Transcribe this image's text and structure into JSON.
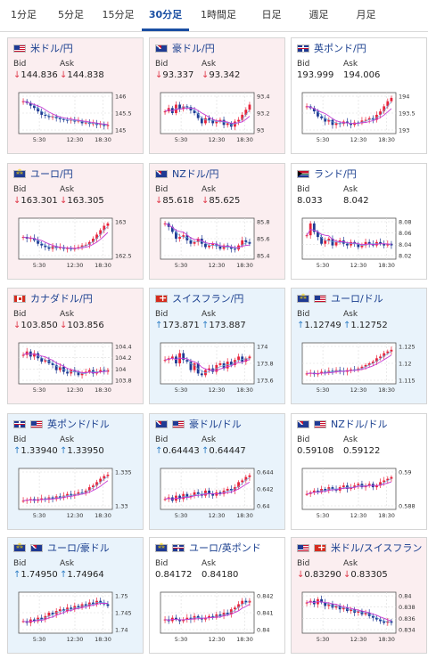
{
  "tabs": [
    "1分足",
    "5分足",
    "15分足",
    "30分足",
    "1時間足",
    "日足",
    "週足",
    "月足"
  ],
  "active_tab": "30分足",
  "labels": {
    "bid": "Bid",
    "ask": "Ask"
  },
  "x_ticks": [
    "5:30",
    "12:30",
    "18:30"
  ],
  "colors": {
    "down_card": "#fbeef0",
    "up_card": "#e9f3fb",
    "candle_up": "#e8233b",
    "candle_down": "#1f3a93",
    "ma": "#c63bd3",
    "ma2": "#6fa8dc"
  },
  "pairs": [
    {
      "name": "米ドル/円",
      "flag": "us",
      "state": "down",
      "bid": "144.836",
      "ask": "144.838",
      "dir": "down",
      "ticks": [
        "146",
        "145.5",
        "145"
      ]
    },
    {
      "name": "豪ドル/円",
      "flag": "au",
      "state": "down",
      "bid": "93.337",
      "ask": "93.342",
      "dir": "down",
      "ticks": [
        "93.4",
        "93.2",
        "93"
      ]
    },
    {
      "name": "英ポンド/円",
      "flag": "gb",
      "state": "neutral",
      "bid": "193.999",
      "ask": "194.006",
      "dir": "none",
      "ticks": [
        "194",
        "193.5",
        "193"
      ]
    },
    {
      "name": "ユーロ/円",
      "flag": "eu",
      "state": "down",
      "bid": "163.301",
      "ask": "163.305",
      "dir": "down",
      "ticks": [
        "163",
        "162.5"
      ]
    },
    {
      "name": "NZドル/円",
      "flag": "nz",
      "state": "down",
      "bid": "85.618",
      "ask": "85.625",
      "dir": "down",
      "ticks": [
        "85.8",
        "85.6",
        "85.4"
      ]
    },
    {
      "name": "ランド/円",
      "flag": "za",
      "state": "neutral",
      "bid": "8.033",
      "ask": "8.042",
      "dir": "none",
      "ticks": [
        "8.08",
        "8.06",
        "8.04",
        "8.02"
      ]
    },
    {
      "name": "カナダドル/円",
      "flag": "ca",
      "state": "down",
      "bid": "103.850",
      "ask": "103.856",
      "dir": "down",
      "ticks": [
        "104.4",
        "104.2",
        "104",
        "103.8"
      ]
    },
    {
      "name": "スイスフラン/円",
      "flag": "ch",
      "state": "up",
      "bid": "173.871",
      "ask": "173.887",
      "dir": "up",
      "ticks": [
        "174",
        "173.8",
        "173.6"
      ]
    },
    {
      "name": "ユーロ/ドル",
      "flag": "eu us",
      "state": "up",
      "bid": "1.12749",
      "ask": "1.12752",
      "dir": "up",
      "ticks": [
        "1.125",
        "1.12",
        "1.115"
      ]
    },
    {
      "name": "英ポンド/ドル",
      "flag": "gb us",
      "state": "up",
      "bid": "1.33940",
      "ask": "1.33950",
      "dir": "up",
      "ticks": [
        "1.335",
        "1.33"
      ]
    },
    {
      "name": "豪ドル/ドル",
      "flag": "au us",
      "state": "up",
      "bid": "0.64443",
      "ask": "0.64447",
      "dir": "up",
      "ticks": [
        "0.644",
        "0.642",
        "0.64"
      ]
    },
    {
      "name": "NZドル/ドル",
      "flag": "nz us",
      "state": "neutral",
      "bid": "0.59108",
      "ask": "0.59122",
      "dir": "none",
      "ticks": [
        "0.59",
        "0.588"
      ]
    },
    {
      "name": "ユーロ/豪ドル",
      "flag": "eu au",
      "state": "up",
      "bid": "1.74950",
      "ask": "1.74964",
      "dir": "up",
      "ticks": [
        "1.75",
        "1.745",
        "1.74"
      ]
    },
    {
      "name": "ユーロ/英ポンド",
      "flag": "eu gb",
      "state": "neutral",
      "bid": "0.84172",
      "ask": "0.84180",
      "dir": "none",
      "ticks": [
        "0.842",
        "0.841",
        "0.84"
      ]
    },
    {
      "name": "米ドル/スイスフラン",
      "flag": "us ch",
      "state": "down",
      "bid": "0.83290",
      "ask": "0.83305",
      "dir": "down",
      "ticks": [
        "0.84",
        "0.838",
        "0.836",
        "0.834"
      ]
    }
  ]
}
